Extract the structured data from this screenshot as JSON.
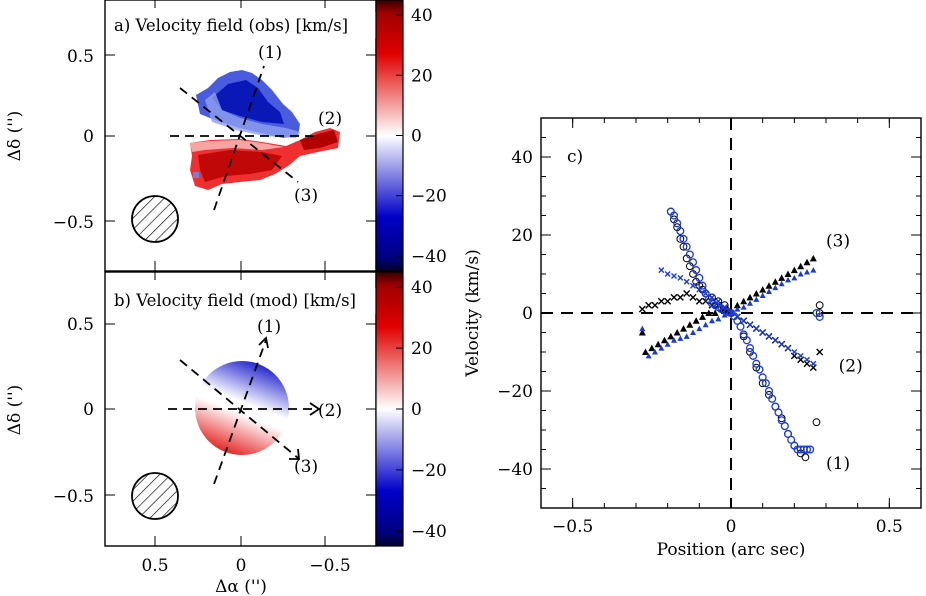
{
  "colorbar": {
    "ticks": [
      40,
      20,
      0,
      -20,
      -40
    ],
    "range": [
      -45,
      45
    ],
    "colors": {
      "positive": "#e00000",
      "zero": "#ffffff",
      "negative": "#0000c8",
      "deep_negative": "#00002a",
      "deep_positive": "#3a0000"
    }
  },
  "panel_a": {
    "title": "a) Velocity field (obs) [km/s]",
    "ylabel": "Δδ ('')",
    "yticks": [
      "0.5",
      "0",
      "−0.5"
    ],
    "cut_labels": [
      "(1)",
      "(2)",
      "(3)"
    ]
  },
  "panel_b": {
    "title": "b) Velocity field (mod) [km/s]",
    "ylabel": "Δδ ('')",
    "yticks": [
      "0.5",
      "0",
      "−0.5"
    ],
    "xticks": [
      "0.5",
      "0",
      "−0.5"
    ],
    "xlabel": "Δα ('')",
    "cut_labels": [
      "(1)",
      "(2)",
      "(3)"
    ]
  },
  "chart_data": [
    {
      "type": "heatmap",
      "title": "a) Velocity field (obs) [km/s]",
      "ylabel": "Δδ ('')",
      "xlim": [
        0.8,
        -0.8
      ],
      "ylim": [
        -0.8,
        0.8
      ],
      "colorbar_range": [
        -45,
        45
      ],
      "cuts": [
        {
          "label": "(1)",
          "pa_deg": 20
        },
        {
          "label": "(2)",
          "pa_deg": -90
        },
        {
          "label": "(3)",
          "pa_deg": -130
        }
      ],
      "beam": {
        "x": 0.5,
        "y": -0.5,
        "radius": 0.13
      }
    },
    {
      "type": "heatmap",
      "title": "b) Velocity field (mod) [km/s]",
      "xlabel": "Δα ('')",
      "ylabel": "Δδ ('')",
      "xlim": [
        0.8,
        -0.8
      ],
      "ylim": [
        -0.8,
        0.8
      ],
      "colorbar_range": [
        -45,
        45
      ],
      "disk": {
        "radius": 0.28,
        "vmax": 45
      },
      "cuts": [
        {
          "label": "(1)",
          "pa_deg": 20
        },
        {
          "label": "(2)",
          "pa_deg": -90
        },
        {
          "label": "(3)",
          "pa_deg": -130
        }
      ],
      "beam": {
        "x": 0.5,
        "y": -0.5,
        "radius": 0.13
      }
    },
    {
      "type": "scatter",
      "title": "c)",
      "xlabel": "Position (arc sec)",
      "ylabel": "Velocity (km/s)",
      "xlim": [
        -0.6,
        0.6
      ],
      "ylim": [
        -50,
        50
      ],
      "xticks": [
        "−0.5",
        "0",
        "0.5"
      ],
      "yticks": [
        "40",
        "20",
        "0",
        "−20",
        "−40"
      ],
      "cut_labels": [
        {
          "text": "(1)",
          "x": 0.3,
          "y": -40
        },
        {
          "text": "(2)",
          "x": 0.34,
          "y": -15
        },
        {
          "text": "(3)",
          "x": 0.3,
          "y": 17
        }
      ],
      "series": [
        {
          "marker": "circle",
          "points": [
            [
              -0.19,
              26
            ],
            [
              -0.18,
              24
            ],
            [
              -0.17,
              22
            ],
            [
              -0.16,
              19
            ],
            [
              -0.15,
              17
            ],
            [
              -0.14,
              14
            ],
            [
              -0.13,
              12
            ],
            [
              -0.12,
              10
            ],
            [
              -0.11,
              8
            ],
            [
              -0.1,
              7
            ],
            [
              -0.09,
              6
            ],
            [
              -0.08,
              5
            ],
            [
              -0.06,
              4
            ],
            [
              -0.04,
              3
            ],
            [
              -0.02,
              2
            ],
            [
              0.0,
              0
            ],
            [
              0.02,
              -2
            ],
            [
              0.04,
              -6
            ],
            [
              0.06,
              -10
            ],
            [
              0.08,
              -14
            ],
            [
              0.1,
              -18
            ],
            [
              0.12,
              -21
            ],
            [
              0.14,
              -24
            ],
            [
              0.16,
              -27
            ],
            [
              0.18,
              -31
            ],
            [
              0.2,
              -34
            ],
            [
              0.22,
              -36
            ],
            [
              0.235,
              -37
            ],
            [
              0.25,
              -35
            ],
            [
              0.27,
              -28
            ],
            [
              0.28,
              0
            ],
            [
              0.28,
              2
            ]
          ]
        },
        {
          "marker": "triangle",
          "points": [
            [
              -0.27,
              -10
            ],
            [
              -0.25,
              -9
            ],
            [
              -0.23,
              -8
            ],
            [
              -0.21,
              -7
            ],
            [
              -0.19,
              -6
            ],
            [
              -0.17,
              -5
            ],
            [
              -0.15,
              -4
            ],
            [
              -0.13,
              -3
            ],
            [
              -0.11,
              -2
            ],
            [
              -0.09,
              -1
            ],
            [
              -0.07,
              0
            ],
            [
              -0.05,
              0
            ],
            [
              -0.03,
              1
            ],
            [
              -0.01,
              1
            ],
            [
              0.0,
              0
            ],
            [
              0.02,
              2
            ],
            [
              0.04,
              3
            ],
            [
              0.06,
              4
            ],
            [
              0.08,
              5
            ],
            [
              0.1,
              6
            ],
            [
              0.12,
              7
            ],
            [
              0.14,
              8
            ],
            [
              0.16,
              9
            ],
            [
              0.18,
              10
            ],
            [
              0.2,
              11
            ],
            [
              0.22,
              12
            ],
            [
              0.24,
              13
            ],
            [
              0.26,
              14
            ],
            [
              -0.28,
              -5
            ]
          ]
        },
        {
          "marker": "cross",
          "points": [
            [
              -0.28,
              1
            ],
            [
              -0.26,
              2
            ],
            [
              -0.24,
              2
            ],
            [
              -0.22,
              3
            ],
            [
              -0.2,
              3
            ],
            [
              -0.18,
              4
            ],
            [
              -0.16,
              4
            ],
            [
              -0.14,
              5
            ],
            [
              -0.12,
              4
            ],
            [
              -0.1,
              3
            ],
            [
              -0.08,
              3
            ],
            [
              -0.06,
              2
            ],
            [
              -0.04,
              2
            ],
            [
              -0.02,
              1
            ],
            [
              0.0,
              0
            ],
            [
              0.02,
              -1
            ],
            [
              0.04,
              -2
            ],
            [
              0.06,
              -3
            ],
            [
              0.08,
              -4
            ],
            [
              0.1,
              -5
            ],
            [
              0.12,
              -6
            ],
            [
              0.14,
              -7
            ],
            [
              0.16,
              -8
            ],
            [
              0.18,
              -9
            ],
            [
              0.2,
              -11
            ],
            [
              0.22,
              -12
            ],
            [
              0.24,
              -13
            ],
            [
              0.26,
              -14
            ],
            [
              0.28,
              -10
            ]
          ]
        },
        {
          "marker": "model-circle",
          "points": [
            [
              -0.19,
              26
            ],
            [
              -0.18,
              25
            ],
            [
              -0.17,
              23
            ],
            [
              -0.16,
              21
            ],
            [
              -0.15,
              19
            ],
            [
              -0.14,
              17
            ],
            [
              -0.13,
              15
            ],
            [
              -0.12,
              13
            ],
            [
              -0.11,
              11
            ],
            [
              -0.1,
              9
            ],
            [
              -0.09,
              7
            ],
            [
              -0.08,
              5
            ],
            [
              -0.07,
              3.5
            ],
            [
              -0.06,
              2.5
            ],
            [
              -0.05,
              2
            ],
            [
              -0.04,
              1.5
            ],
            [
              -0.03,
              1
            ],
            [
              -0.02,
              0.6
            ],
            [
              -0.01,
              0.3
            ],
            [
              0.0,
              0
            ],
            [
              0.01,
              -0.8
            ],
            [
              0.02,
              -2
            ],
            [
              0.03,
              -3.5
            ],
            [
              0.04,
              -5.5
            ],
            [
              0.05,
              -7
            ],
            [
              0.06,
              -9
            ],
            [
              0.07,
              -11
            ],
            [
              0.08,
              -13
            ],
            [
              0.09,
              -14.5
            ],
            [
              0.1,
              -16.5
            ],
            [
              0.11,
              -18
            ],
            [
              0.12,
              -20
            ],
            [
              0.13,
              -22
            ],
            [
              0.14,
              -24
            ],
            [
              0.15,
              -25.5
            ],
            [
              0.16,
              -27.5
            ],
            [
              0.17,
              -29
            ],
            [
              0.18,
              -31
            ],
            [
              0.19,
              -32.5
            ],
            [
              0.2,
              -34
            ],
            [
              0.21,
              -35
            ],
            [
              0.22,
              -35
            ],
            [
              0.23,
              -35
            ],
            [
              0.24,
              -35
            ],
            [
              0.25,
              -35
            ],
            [
              0.27,
              0
            ],
            [
              0.28,
              -1
            ]
          ]
        },
        {
          "marker": "model-triangle",
          "points": [
            [
              -0.26,
              -11
            ],
            [
              -0.24,
              -10
            ],
            [
              -0.22,
              -9
            ],
            [
              -0.2,
              -8
            ],
            [
              -0.18,
              -7
            ],
            [
              -0.16,
              -6.5
            ],
            [
              -0.14,
              -6
            ],
            [
              -0.12,
              -5
            ],
            [
              -0.1,
              -4
            ],
            [
              -0.08,
              -3
            ],
            [
              -0.06,
              -2
            ],
            [
              -0.04,
              -1.5
            ],
            [
              -0.02,
              -0.5
            ],
            [
              0.0,
              0
            ],
            [
              0.02,
              1
            ],
            [
              0.04,
              1.5
            ],
            [
              0.06,
              2.5
            ],
            [
              0.08,
              3.5
            ],
            [
              0.1,
              4.5
            ],
            [
              0.12,
              5.5
            ],
            [
              0.14,
              6.5
            ],
            [
              0.16,
              7.5
            ],
            [
              0.18,
              8.5
            ],
            [
              0.2,
              9
            ],
            [
              0.22,
              10
            ],
            [
              0.24,
              10.5
            ],
            [
              0.26,
              11
            ],
            [
              -0.28,
              -4
            ]
          ]
        },
        {
          "marker": "model-cross",
          "points": [
            [
              -0.22,
              11
            ],
            [
              -0.2,
              10
            ],
            [
              -0.18,
              9.5
            ],
            [
              -0.16,
              9
            ],
            [
              -0.14,
              8
            ],
            [
              -0.12,
              7
            ],
            [
              -0.1,
              6
            ],
            [
              -0.08,
              5
            ],
            [
              -0.06,
              4
            ],
            [
              -0.04,
              3
            ],
            [
              -0.02,
              1.5
            ],
            [
              0.0,
              0
            ],
            [
              0.02,
              -1
            ],
            [
              0.04,
              -2
            ],
            [
              0.06,
              -3
            ],
            [
              0.08,
              -4
            ],
            [
              0.1,
              -5
            ],
            [
              0.12,
              -6
            ],
            [
              0.14,
              -7
            ],
            [
              0.16,
              -8
            ],
            [
              0.18,
              -9
            ],
            [
              0.2,
              -10
            ],
            [
              0.22,
              -11
            ],
            [
              0.24,
              -12
            ],
            [
              0.26,
              -13
            ]
          ]
        }
      ]
    }
  ]
}
